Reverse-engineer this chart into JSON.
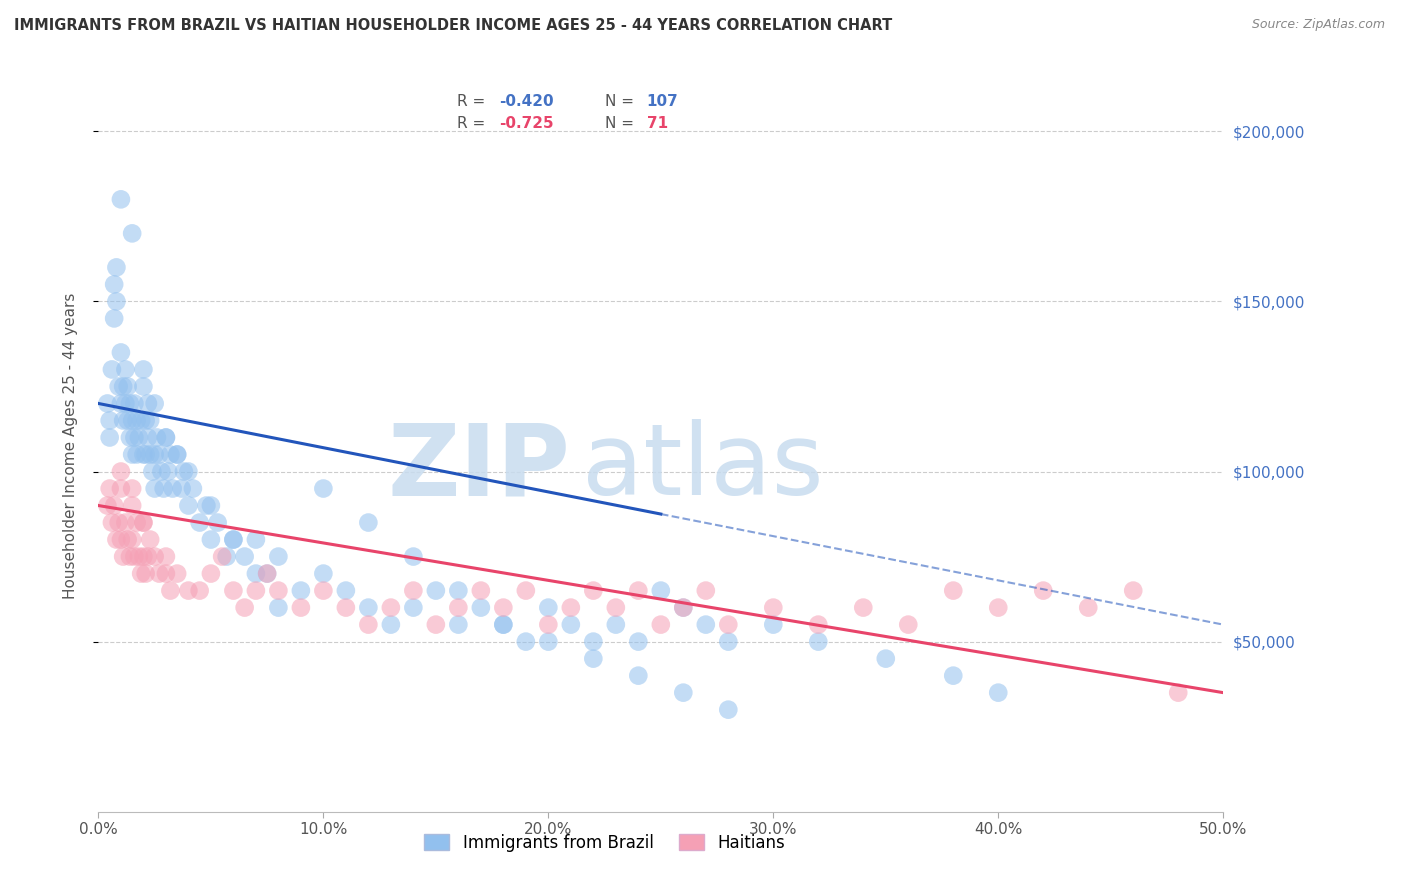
{
  "title": "IMMIGRANTS FROM BRAZIL VS HAITIAN HOUSEHOLDER INCOME AGES 25 - 44 YEARS CORRELATION CHART",
  "source": "Source: ZipAtlas.com",
  "ylabel": "Householder Income Ages 25 - 44 years",
  "xlabel_vals": [
    0.0,
    10.0,
    20.0,
    30.0,
    40.0,
    50.0
  ],
  "ylabel_vals": [
    50000,
    100000,
    150000,
    200000
  ],
  "xlim": [
    0.0,
    50.0
  ],
  "ylim": [
    0,
    215000
  ],
  "brazil_R": -0.42,
  "brazil_N": 107,
  "haiti_R": -0.725,
  "haiti_N": 71,
  "brazil_color": "#92C0EE",
  "brazil_line_color": "#2255BB",
  "haiti_color": "#F5A0B5",
  "haiti_line_color": "#E8446A",
  "background_color": "#FFFFFF",
  "brazil_x": [
    0.4,
    0.5,
    0.5,
    0.6,
    0.7,
    0.7,
    0.8,
    0.8,
    0.9,
    1.0,
    1.0,
    1.1,
    1.1,
    1.2,
    1.2,
    1.3,
    1.3,
    1.4,
    1.4,
    1.5,
    1.5,
    1.6,
    1.6,
    1.7,
    1.7,
    1.8,
    1.9,
    2.0,
    2.0,
    2.1,
    2.1,
    2.2,
    2.2,
    2.3,
    2.3,
    2.4,
    2.5,
    2.5,
    2.6,
    2.7,
    2.8,
    2.9,
    3.0,
    3.1,
    3.2,
    3.3,
    3.5,
    3.7,
    3.8,
    4.0,
    4.2,
    4.5,
    4.8,
    5.0,
    5.3,
    5.7,
    6.0,
    6.5,
    7.0,
    7.5,
    8.0,
    9.0,
    10.0,
    11.0,
    12.0,
    13.0,
    14.0,
    15.0,
    16.0,
    17.0,
    18.0,
    19.0,
    20.0,
    21.0,
    22.0,
    23.0,
    24.0,
    25.0,
    26.0,
    27.0,
    28.0,
    30.0,
    32.0,
    35.0,
    38.0,
    40.0,
    1.0,
    1.5,
    2.0,
    2.5,
    3.0,
    3.5,
    4.0,
    5.0,
    6.0,
    7.0,
    8.0,
    10.0,
    12.0,
    14.0,
    16.0,
    18.0,
    20.0,
    22.0,
    24.0,
    26.0,
    28.0
  ],
  "brazil_y": [
    120000,
    115000,
    110000,
    130000,
    155000,
    145000,
    160000,
    150000,
    125000,
    120000,
    135000,
    125000,
    115000,
    130000,
    120000,
    125000,
    115000,
    120000,
    110000,
    115000,
    105000,
    120000,
    110000,
    115000,
    105000,
    110000,
    115000,
    105000,
    125000,
    115000,
    105000,
    120000,
    110000,
    105000,
    115000,
    100000,
    105000,
    95000,
    110000,
    105000,
    100000,
    95000,
    110000,
    100000,
    105000,
    95000,
    105000,
    95000,
    100000,
    90000,
    95000,
    85000,
    90000,
    80000,
    85000,
    75000,
    80000,
    75000,
    80000,
    70000,
    75000,
    65000,
    70000,
    65000,
    60000,
    55000,
    60000,
    65000,
    55000,
    60000,
    55000,
    50000,
    60000,
    55000,
    50000,
    55000,
    50000,
    65000,
    60000,
    55000,
    50000,
    55000,
    50000,
    45000,
    40000,
    35000,
    180000,
    170000,
    130000,
    120000,
    110000,
    105000,
    100000,
    90000,
    80000,
    70000,
    60000,
    95000,
    85000,
    75000,
    65000,
    55000,
    50000,
    45000,
    40000,
    35000,
    30000
  ],
  "haiti_x": [
    0.4,
    0.5,
    0.6,
    0.7,
    0.8,
    0.9,
    1.0,
    1.0,
    1.1,
    1.2,
    1.3,
    1.4,
    1.5,
    1.5,
    1.6,
    1.7,
    1.8,
    1.9,
    2.0,
    2.0,
    2.1,
    2.2,
    2.3,
    2.5,
    2.7,
    3.0,
    3.2,
    3.5,
    4.0,
    4.5,
    5.0,
    5.5,
    6.0,
    6.5,
    7.0,
    7.5,
    8.0,
    9.0,
    10.0,
    11.0,
    12.0,
    13.0,
    14.0,
    15.0,
    16.0,
    17.0,
    18.0,
    19.0,
    20.0,
    21.0,
    22.0,
    23.0,
    24.0,
    25.0,
    26.0,
    27.0,
    28.0,
    30.0,
    32.0,
    34.0,
    36.0,
    38.0,
    40.0,
    42.0,
    44.0,
    46.0,
    48.0,
    1.0,
    1.5,
    2.0,
    3.0
  ],
  "haiti_y": [
    90000,
    95000,
    85000,
    90000,
    80000,
    85000,
    95000,
    80000,
    75000,
    85000,
    80000,
    75000,
    90000,
    80000,
    75000,
    85000,
    75000,
    70000,
    85000,
    75000,
    70000,
    75000,
    80000,
    75000,
    70000,
    75000,
    65000,
    70000,
    65000,
    65000,
    70000,
    75000,
    65000,
    60000,
    65000,
    70000,
    65000,
    60000,
    65000,
    60000,
    55000,
    60000,
    65000,
    55000,
    60000,
    65000,
    60000,
    65000,
    55000,
    60000,
    65000,
    60000,
    65000,
    55000,
    60000,
    65000,
    55000,
    60000,
    55000,
    60000,
    55000,
    65000,
    60000,
    65000,
    60000,
    65000,
    35000,
    100000,
    95000,
    85000,
    70000
  ],
  "brazil_line_x0": 0.0,
  "brazil_line_x1": 50.0,
  "brazil_line_y0": 120000,
  "brazil_line_y1": 55000,
  "brazil_solid_end": 25.0,
  "haiti_line_x0": 0.0,
  "haiti_line_x1": 50.0,
  "haiti_line_y0": 90000,
  "haiti_line_y1": 35000,
  "legend_brazil_label": "R = -0.420   N = 107",
  "legend_haiti_label": "R = -0.725   N =  71",
  "bottom_legend_brazil": "Immigrants from Brazil",
  "bottom_legend_haiti": "Haitians"
}
